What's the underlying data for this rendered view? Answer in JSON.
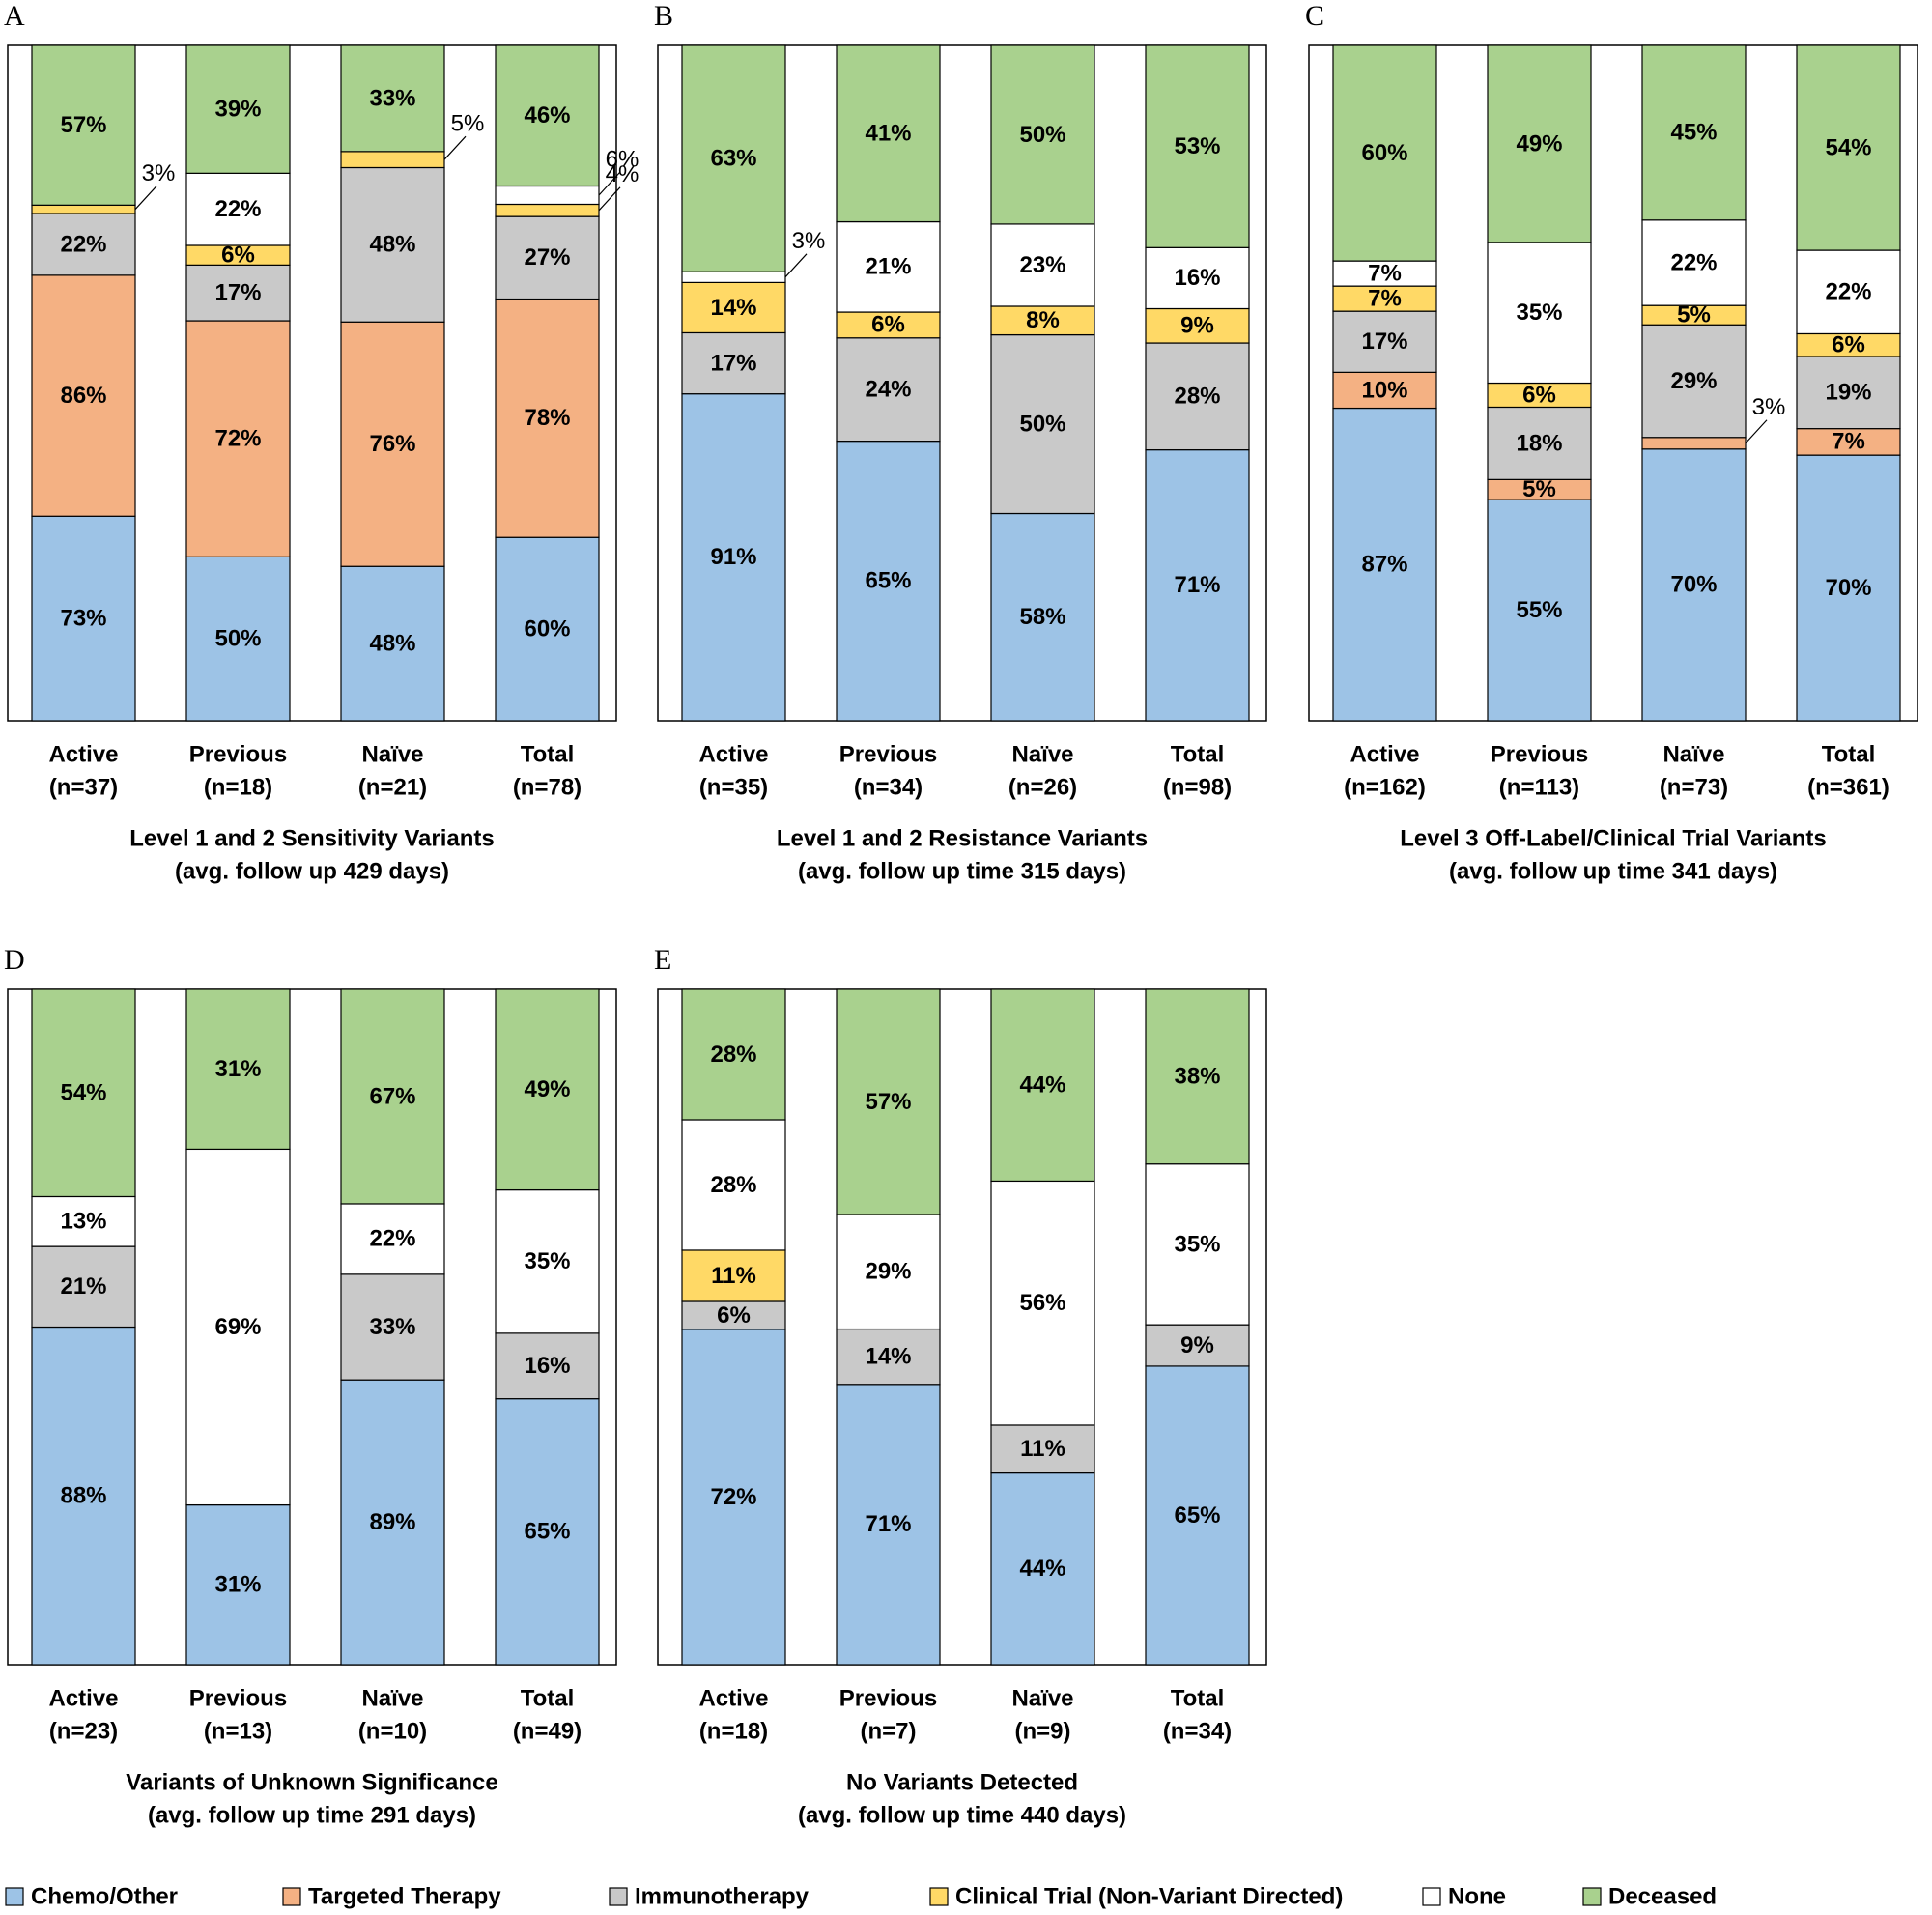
{
  "legend": [
    {
      "name": "Chemo/Other",
      "color": "#9dc3e6"
    },
    {
      "name": "Targeted Therapy",
      "color": "#f4b183"
    },
    {
      "name": "Immunotherapy",
      "color": "#c9c9c9"
    },
    {
      "name": "Clinical Trial (Non-Variant Directed)",
      "color": "#ffd966"
    },
    {
      "name": "None",
      "color": "#ffffff"
    },
    {
      "name": "Deceased",
      "color": "#a9d18e"
    }
  ],
  "chart_data": [
    {
      "type": "bar",
      "label": "A",
      "xlabel": "Level 1 and 2 Sensitivity Variants",
      "xlabel_sub": "(avg. follow up 429 days)",
      "categories": [
        "Active",
        "Previous",
        "Naïve",
        "Total"
      ],
      "counts": [
        "(n=37)",
        "(n=18)",
        "(n=21)",
        "(n=78)"
      ],
      "series": [
        {
          "values": [
            73,
            50,
            48,
            60
          ],
          "value_labels": [
            "73%",
            "50%",
            "48%",
            "60%"
          ]
        },
        {
          "values": [
            86,
            72,
            76,
            78
          ],
          "value_labels": [
            "86%",
            "72%",
            "76%",
            "78%"
          ]
        },
        {
          "values": [
            22,
            17,
            48,
            27
          ],
          "value_labels": [
            "22%",
            "17%",
            "48%",
            "27%"
          ]
        },
        {
          "values": [
            3,
            6,
            5,
            4
          ],
          "value_labels": [
            "3%",
            "6%",
            "5%",
            "4%"
          ]
        },
        {
          "values": [
            null,
            22,
            null,
            6
          ],
          "value_labels": [
            null,
            "22%",
            null,
            "6%"
          ]
        },
        {
          "values": [
            57,
            39,
            33,
            46
          ],
          "value_labels": [
            "57%",
            "39%",
            "33%",
            "46%"
          ]
        }
      ]
    },
    {
      "type": "bar",
      "label": "B",
      "xlabel": "Level 1 and 2 Resistance Variants",
      "xlabel_sub": "(avg. follow up time 315 days)",
      "categories": [
        "Active",
        "Previous",
        "Naïve",
        "Total"
      ],
      "counts": [
        "(n=35)",
        "(n=34)",
        "(n=26)",
        "(n=98)"
      ],
      "series": [
        {
          "values": [
            91,
            65,
            58,
            71
          ],
          "value_labels": [
            "91%",
            "65%",
            "58%",
            "71%"
          ]
        },
        {
          "values": [
            null,
            null,
            null,
            null
          ],
          "value_labels": [
            null,
            null,
            null,
            null
          ]
        },
        {
          "values": [
            17,
            24,
            50,
            28
          ],
          "value_labels": [
            "17%",
            "24%",
            "50%",
            "28%"
          ]
        },
        {
          "values": [
            14,
            6,
            8,
            9
          ],
          "value_labels": [
            "14%",
            "6%",
            "8%",
            "9%"
          ]
        },
        {
          "values": [
            3,
            21,
            23,
            16
          ],
          "value_labels": [
            "3%",
            "21%",
            "23%",
            "16%"
          ]
        },
        {
          "values": [
            63,
            41,
            50,
            53
          ],
          "value_labels": [
            "63%",
            "41%",
            "50%",
            "53%"
          ]
        }
      ]
    },
    {
      "type": "bar",
      "label": "C",
      "xlabel": "Level 3 Off-Label/Clinical Trial Variants",
      "xlabel_sub": "(avg. follow up time 341 days)",
      "categories": [
        "Active",
        "Previous",
        "Naïve",
        "Total"
      ],
      "counts": [
        "(n=162)",
        "(n=113)",
        "(n=73)",
        "(n=361)"
      ],
      "series": [
        {
          "values": [
            87,
            55,
            70,
            70
          ],
          "value_labels": [
            "87%",
            "55%",
            "70%",
            "70%"
          ]
        },
        {
          "values": [
            10,
            5,
            3,
            7
          ],
          "value_labels": [
            "10%",
            "5%",
            "3%",
            "7%"
          ]
        },
        {
          "values": [
            17,
            18,
            29,
            19
          ],
          "value_labels": [
            "17%",
            "18%",
            "29%",
            "19%"
          ]
        },
        {
          "values": [
            7,
            6,
            5,
            6
          ],
          "value_labels": [
            "7%",
            "6%",
            "5%",
            "6%"
          ]
        },
        {
          "values": [
            7,
            35,
            22,
            22
          ],
          "value_labels": [
            "7%",
            "35%",
            "22%",
            "22%"
          ]
        },
        {
          "values": [
            60,
            49,
            45,
            54
          ],
          "value_labels": [
            "60%",
            "49%",
            "45%",
            "54%"
          ]
        }
      ]
    },
    {
      "type": "bar",
      "label": "D",
      "xlabel": "Variants of Unknown Significance",
      "xlabel_sub": "(avg. follow up time 291 days)",
      "categories": [
        "Active",
        "Previous",
        "Naïve",
        "Total"
      ],
      "counts": [
        "(n=23)",
        "(n=13)",
        "(n=10)",
        "(n=49)"
      ],
      "series": [
        {
          "values": [
            88,
            31,
            89,
            65
          ],
          "value_labels": [
            "88%",
            "31%",
            "89%",
            "65%"
          ]
        },
        {
          "values": [
            null,
            null,
            null,
            null
          ],
          "value_labels": [
            null,
            null,
            null,
            null
          ]
        },
        {
          "values": [
            21,
            null,
            33,
            16
          ],
          "value_labels": [
            "21%",
            null,
            "33%",
            "16%"
          ]
        },
        {
          "values": [
            null,
            null,
            null,
            null
          ],
          "value_labels": [
            null,
            null,
            null,
            null
          ]
        },
        {
          "values": [
            13,
            69,
            22,
            35
          ],
          "value_labels": [
            "13%",
            "69%",
            "22%",
            "35%"
          ]
        },
        {
          "values": [
            54,
            31,
            67,
            49
          ],
          "value_labels": [
            "54%",
            "31%",
            "67%",
            "49%"
          ]
        }
      ]
    },
    {
      "type": "bar",
      "label": "E",
      "xlabel": "No Variants Detected",
      "xlabel_sub": "(avg. follow up time 440 days)",
      "categories": [
        "Active",
        "Previous",
        "Naïve",
        "Total"
      ],
      "counts": [
        "(n=18)",
        "(n=7)",
        "(n=9)",
        "(n=34)"
      ],
      "series": [
        {
          "values": [
            72,
            71,
            44,
            65
          ],
          "value_labels": [
            "72%",
            "71%",
            "44%",
            "65%"
          ]
        },
        {
          "values": [
            null,
            null,
            null,
            null
          ],
          "value_labels": [
            null,
            null,
            null,
            null
          ]
        },
        {
          "values": [
            6,
            14,
            11,
            9
          ],
          "value_labels": [
            "6%",
            "14%",
            "11%",
            "9%"
          ]
        },
        {
          "values": [
            11,
            null,
            null,
            null
          ],
          "value_labels": [
            "11%",
            null,
            null,
            null
          ]
        },
        {
          "values": [
            28,
            29,
            56,
            35
          ],
          "value_labels": [
            "28%",
            "29%",
            "56%",
            "35%"
          ]
        },
        {
          "values": [
            28,
            57,
            44,
            38
          ],
          "value_labels": [
            "28%",
            "57%",
            "44%",
            "38%"
          ]
        }
      ]
    }
  ]
}
